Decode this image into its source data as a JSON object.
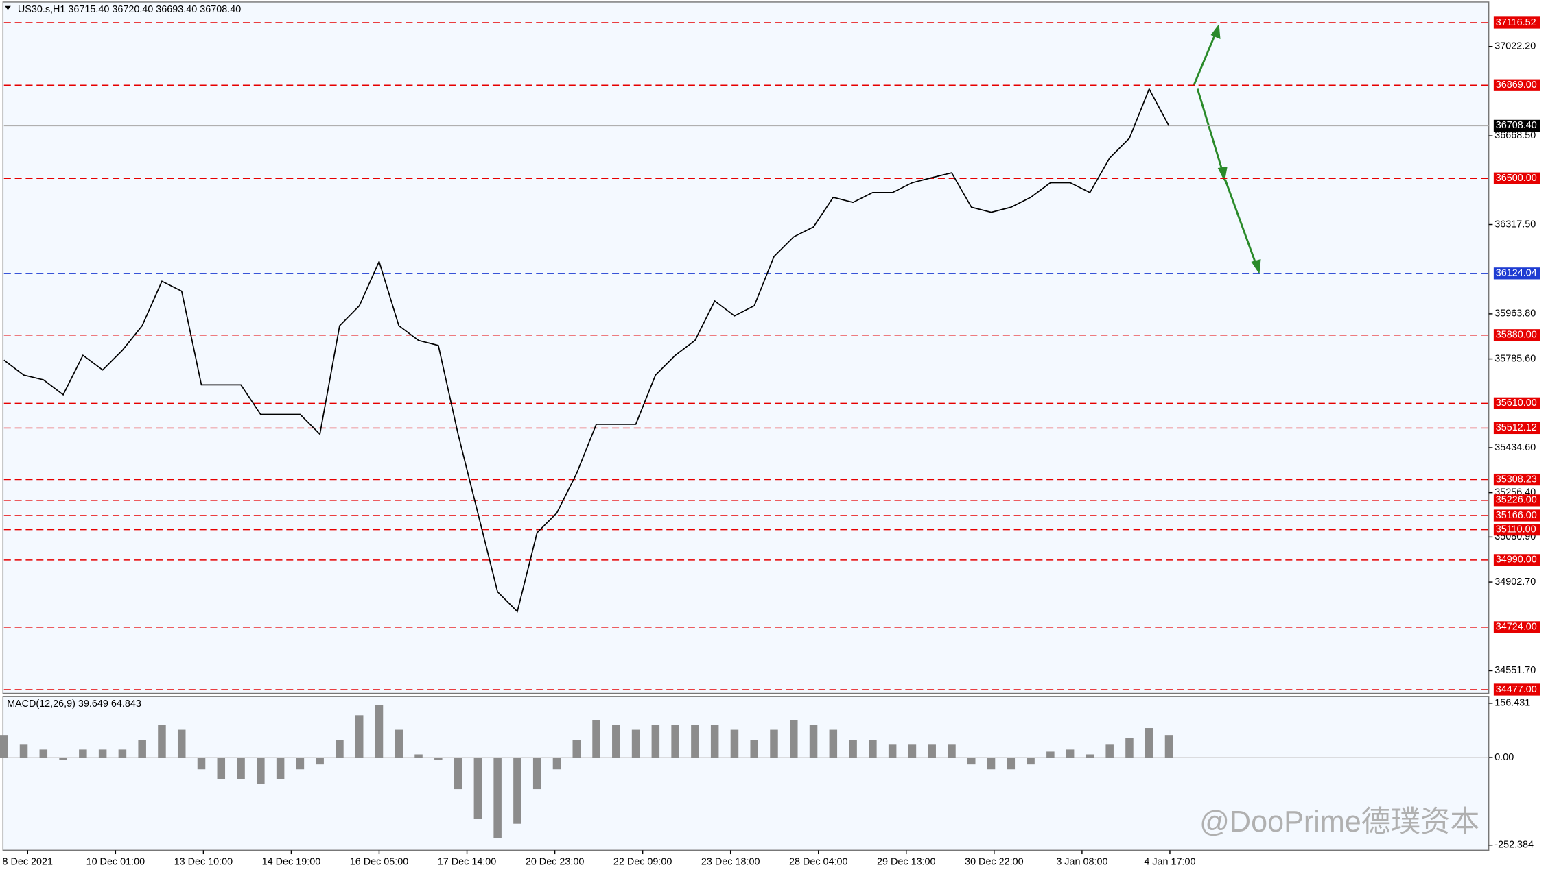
{
  "chart_data": [
    {
      "type": "line",
      "title": "US30.s,H1  36715.40 36720.40 36693.40 36708.40",
      "color": "#000000",
      "values": [
        35781,
        35722,
        35703,
        35644,
        35800,
        35742,
        35820,
        35917,
        36093,
        36054,
        35683,
        35683,
        35683,
        35566,
        35566,
        35566,
        35488,
        35917,
        35996,
        36171,
        35917,
        35859,
        35839,
        35488,
        35176,
        34864,
        34786,
        35098,
        35176,
        35332,
        35527,
        35527,
        35527,
        35722,
        35800,
        35859,
        36015,
        35956,
        35996,
        36191,
        36269,
        36308,
        36425,
        36405,
        36444,
        36444,
        36483,
        36503,
        36522,
        36386,
        36366,
        36386,
        36425,
        36483,
        36483,
        36444,
        36581,
        36659,
        36854,
        36708.4
      ],
      "xlabels": [
        "8 Dec 2021",
        "10 Dec 01:00",
        "13 Dec 10:00",
        "14 Dec 19:00",
        "16 Dec 05:00",
        "17 Dec 14:00",
        "20 Dec 23:00",
        "22 Dec 09:00",
        "23 Dec 18:00",
        "28 Dec 04:00",
        "29 Dec 13:00",
        "30 Dec 22:00",
        "3 Jan 08:00",
        "4 Jan 17:00"
      ],
      "ylim": [
        34462,
        37198
      ],
      "yticks": [
        {
          "value": 37022.2,
          "label": "37022.20"
        },
        {
          "value": 36668.5,
          "label": "36668.50"
        },
        {
          "value": 36317.5,
          "label": "36317.50"
        },
        {
          "value": 35963.8,
          "label": "35963.80"
        },
        {
          "value": 35785.6,
          "label": "35785.60"
        },
        {
          "value": 35434.6,
          "label": "35434.60"
        },
        {
          "value": 35256.4,
          "label": "35256.40"
        },
        {
          "value": 35080.9,
          "label": "35080.90"
        },
        {
          "value": 34902.7,
          "label": "34902.70"
        },
        {
          "value": 34551.7,
          "label": "34551.70"
        }
      ],
      "levels": [
        {
          "value": 37116.52,
          "label": "37116.52",
          "color": "#e60000"
        },
        {
          "value": 36869,
          "label": "36869.00",
          "color": "#e60000"
        },
        {
          "value": 36708.4,
          "label": "36708.40",
          "color": "#000000"
        },
        {
          "value": 36500,
          "label": "36500.00",
          "color": "#e60000"
        },
        {
          "value": 36124.04,
          "label": "36124.04",
          "color": "#1e3cd2"
        },
        {
          "value": 35880,
          "label": "35880.00",
          "color": "#e60000"
        },
        {
          "value": 35610,
          "label": "35610.00",
          "color": "#e60000"
        },
        {
          "value": 35512.12,
          "label": "35512.12",
          "color": "#e60000"
        },
        {
          "value": 35308.23,
          "label": "35308.23",
          "color": "#e60000"
        },
        {
          "value": 35226,
          "label": "35226.00",
          "color": "#e60000"
        },
        {
          "value": 35166,
          "label": "35166.00",
          "color": "#e60000"
        },
        {
          "value": 35110,
          "label": "35110.00",
          "color": "#e60000"
        },
        {
          "value": 34990,
          "label": "34990.00",
          "color": "#e60000"
        },
        {
          "value": 34724,
          "label": "34724.00",
          "color": "#e60000"
        },
        {
          "value": 34477,
          "label": "34477.00",
          "color": "#e60000"
        }
      ]
    },
    {
      "type": "bar",
      "title": "MACD(12,26,9) 39.649 64.843",
      "color": "#8c8c8c",
      "values": [
        65,
        37,
        23,
        -6,
        23,
        23,
        23,
        51,
        94,
        80,
        -34,
        -63,
        -63,
        -77,
        -63,
        -34,
        -20,
        51,
        122,
        151,
        80,
        9,
        -6,
        -91,
        -176,
        -233,
        -191,
        -91,
        -34,
        51,
        108,
        94,
        80,
        94,
        94,
        94,
        94,
        80,
        51,
        80,
        108,
        94,
        80,
        51,
        51,
        37,
        37,
        37,
        37,
        -20,
        -34,
        -34,
        -20,
        17,
        23,
        9,
        37,
        57,
        85,
        65
      ],
      "ylim": [
        -267.3,
        176.3
      ],
      "yticks": [
        156.431,
        {
          "value": 0,
          "label": "0.00"
        },
        -252.384
      ]
    }
  ],
  "watermark": "@DooPrime德璞资本"
}
